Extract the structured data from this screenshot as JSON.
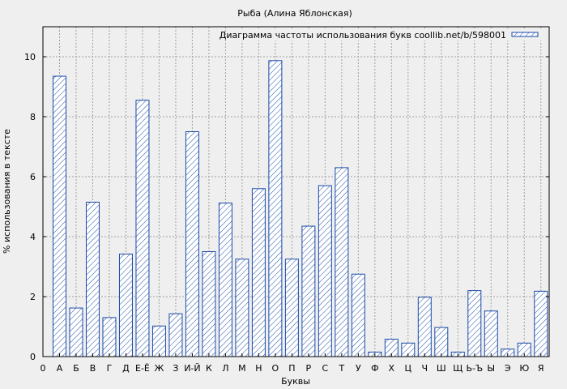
{
  "chart_data": {
    "type": "bar",
    "title": "Рыба (Алина Яблонская)",
    "xlabel": "Буквы",
    "ylabel": "% использования в тексте",
    "legend_label": "Диаграмма частоты использования букв coollib.net/b/598001",
    "legend_position": "top-right",
    "grid": true,
    "ylim": [
      0,
      11
    ],
    "yticks": [
      0,
      2,
      4,
      6,
      8,
      10
    ],
    "x_start_label": "0",
    "categories": [
      "А",
      "Б",
      "В",
      "Г",
      "Д",
      "Е-Ё",
      "Ж",
      "З",
      "И-Й",
      "К",
      "Л",
      "М",
      "Н",
      "О",
      "П",
      "Р",
      "С",
      "Т",
      "У",
      "Ф",
      "Х",
      "Ц",
      "Ч",
      "Ш",
      "Щ",
      "Ь-Ъ",
      "Ы",
      "Э",
      "Ю",
      "Я"
    ],
    "values": [
      9.35,
      1.62,
      5.15,
      1.3,
      3.42,
      8.55,
      1.02,
      1.43,
      7.5,
      3.5,
      5.12,
      3.25,
      5.6,
      9.87,
      3.25,
      4.35,
      5.7,
      6.3,
      2.75,
      0.15,
      0.58,
      0.45,
      1.98,
      0.97,
      0.15,
      2.2,
      1.52,
      0.25,
      0.45,
      2.18
    ],
    "colors": {
      "bar_stroke": "#1a4aa8",
      "hatch": "#1a4aa8",
      "bar_fill": "#ffffff",
      "grid": "#a0a0a0",
      "plot_bg": "#efefef"
    }
  }
}
